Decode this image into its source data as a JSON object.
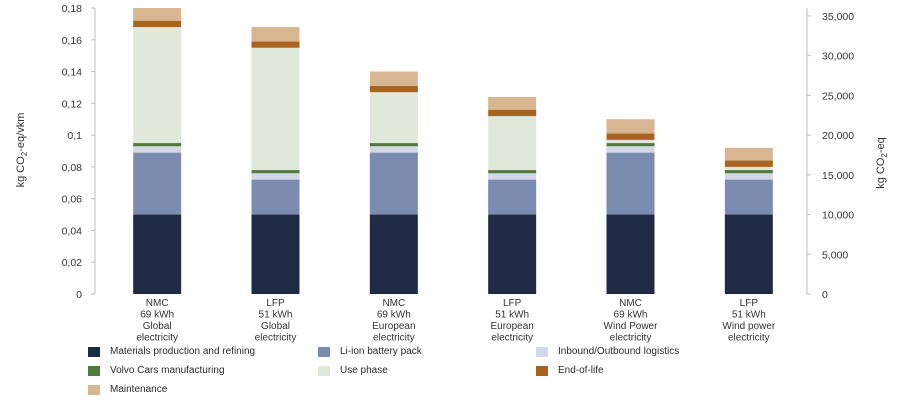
{
  "chart_data": {
    "type": "bar",
    "stacked": true,
    "categories": [
      [
        "NMC",
        "69 kWh",
        "Global",
        "electricity"
      ],
      [
        "LFP",
        "51 kWh",
        "Global",
        "electricity"
      ],
      [
        "NMC",
        "69 kWh",
        "European",
        "electricity"
      ],
      [
        "LFP",
        "51 kWh",
        "European",
        "electricity"
      ],
      [
        "NMC",
        "69 kWh",
        "Wind Power",
        "electricity"
      ],
      [
        "LFP",
        "51 kWh",
        "Wind power",
        "electricity"
      ]
    ],
    "ylabel_left": {
      "base": "kg CO",
      "sub": "2",
      "rest": "-eq/vkm"
    },
    "ylabel_right": {
      "base": "kg CO",
      "sub": "2",
      "rest": "-eq"
    },
    "ylim": [
      0,
      0.18
    ],
    "ylim_right": [
      0,
      36000
    ],
    "yticks_left": [
      "0",
      "0,02",
      "0,04",
      "0,06",
      "0,08",
      "0,1",
      "0,12",
      "0,14",
      "0,16",
      "0,18"
    ],
    "yticks_right": [
      "0",
      "5,000",
      "10,000",
      "15,000",
      "20,000",
      "25,000",
      "30,000",
      "35,000"
    ],
    "grid": false,
    "legend_position": "bottom",
    "series": [
      {
        "name": "Materials production and refining",
        "color": "#1f2a44",
        "values": [
          0.05,
          0.05,
          0.05,
          0.05,
          0.05,
          0.05
        ]
      },
      {
        "name": "Li-ion battery pack",
        "color": "#7b8cb0",
        "values": [
          0.039,
          0.022,
          0.039,
          0.022,
          0.039,
          0.022
        ]
      },
      {
        "name": "Inbound/Outbound logistics",
        "color": "#d3d9e4",
        "values": [
          0.004,
          0.004,
          0.004,
          0.004,
          0.004,
          0.004
        ]
      },
      {
        "name": "Volvo Cars manufacturing",
        "color": "#4f7a3e",
        "values": [
          0.002,
          0.002,
          0.002,
          0.002,
          0.002,
          0.002
        ]
      },
      {
        "name": "Use phase",
        "color": "#e0e8db",
        "values": [
          0.073,
          0.077,
          0.032,
          0.034,
          0.002,
          0.002
        ]
      },
      {
        "name": "End-of-life",
        "color": "#a8641e",
        "values": [
          0.004,
          0.004,
          0.004,
          0.004,
          0.004,
          0.004
        ]
      },
      {
        "name": "Maintenance",
        "color": "#d8b692",
        "values": [
          0.008,
          0.009,
          0.009,
          0.008,
          0.009,
          0.008
        ]
      }
    ]
  }
}
